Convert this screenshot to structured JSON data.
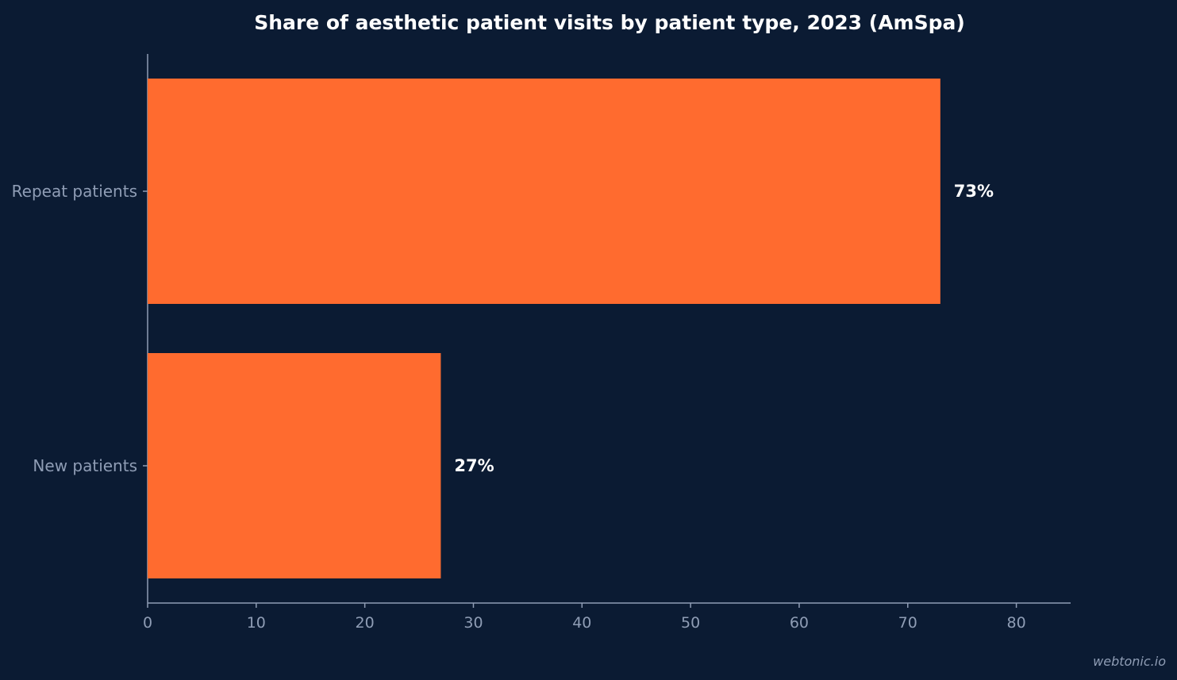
{
  "chart_data": {
    "type": "bar",
    "orientation": "horizontal",
    "title": "Share of aesthetic patient visits by patient type, 2023 (AmSpa)",
    "categories": [
      "Repeat patients",
      "New patients"
    ],
    "values": [
      73,
      27
    ],
    "value_labels": [
      "73%",
      "27%"
    ],
    "xlim": [
      0,
      85
    ],
    "xticks": [
      0,
      10,
      20,
      30,
      40,
      50,
      60,
      70,
      80
    ],
    "xlabel": "",
    "ylabel": "",
    "grid": false,
    "bar_color": "#ff6b2f",
    "background_color": "#0b1b33"
  },
  "watermark": "webtonic.io"
}
